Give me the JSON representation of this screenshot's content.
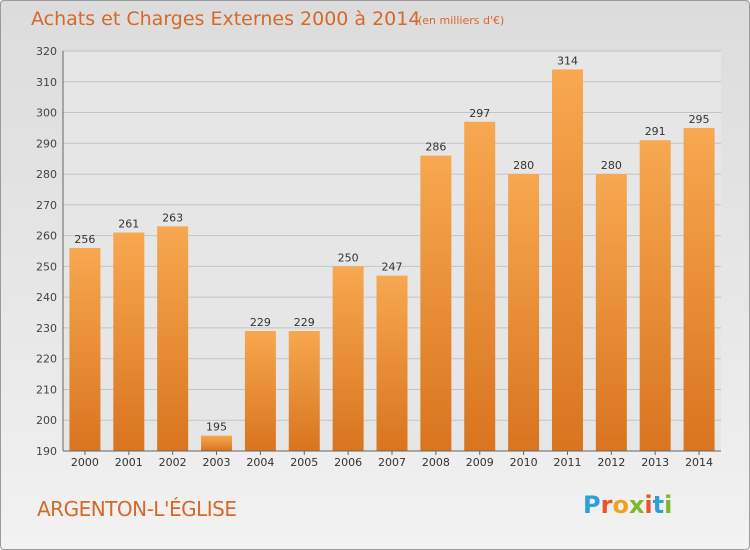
{
  "header": {
    "title": "Achats et Charges Externes 2000 à 2014",
    "unit": "(en milliers d'€)"
  },
  "footer": {
    "city": "ARGENTON-L'ÉGLISE",
    "logo_text": "Proxiti"
  },
  "colors": {
    "accent": "#d4692a",
    "bar": "#f29a3a",
    "bar_dark": "#d9741f"
  },
  "chart_data": {
    "type": "bar",
    "title": "Achats et Charges Externes 2000 à 2014",
    "subtitle": "(en milliers d'€)",
    "xlabel": "",
    "ylabel": "",
    "categories": [
      "2000",
      "2001",
      "2002",
      "2003",
      "2004",
      "2005",
      "2006",
      "2007",
      "2008",
      "2009",
      "2010",
      "2011",
      "2012",
      "2013",
      "2014"
    ],
    "values": [
      256,
      261,
      263,
      195,
      229,
      229,
      250,
      247,
      286,
      297,
      280,
      314,
      280,
      291,
      295
    ],
    "ylim": [
      190,
      320
    ],
    "yticks": [
      190,
      200,
      210,
      220,
      230,
      240,
      250,
      260,
      270,
      280,
      290,
      300,
      310,
      320
    ],
    "grid": true,
    "data_labels": true
  }
}
